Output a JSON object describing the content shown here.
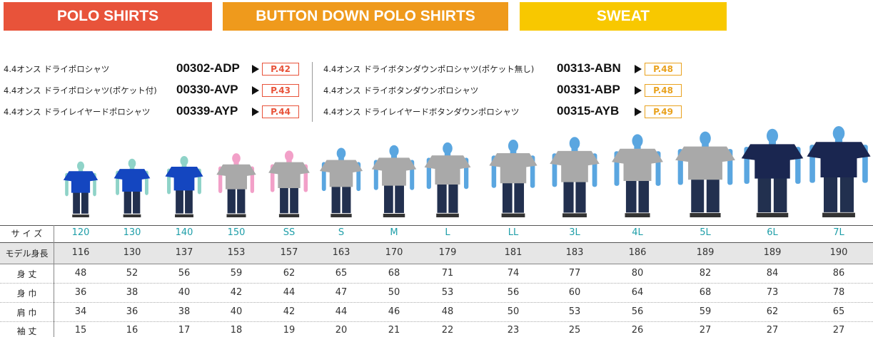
{
  "tabs": [
    "POLO SHIRTS",
    "BUTTON DOWN POLO SHIRTS",
    "SWEAT"
  ],
  "products": {
    "left": [
      {
        "name": "4.4オンス ドライポロシャツ",
        "code": "00302-ADP",
        "page": "P.42"
      },
      {
        "name": "4.4オンス ドライポロシャツ(ポケット付)",
        "code": "00330-AVP",
        "page": "P.43"
      },
      {
        "name": "4.4オンス ドライレイヤードポロシャツ",
        "code": "00339-AYP",
        "page": "P.44"
      }
    ],
    "right": [
      {
        "name": "4.4オンス ドライボタンダウンポロシャツ(ポケット無し)",
        "code": "00313-ABN",
        "page": "P.48"
      },
      {
        "name": "4.4オンス ドライボタンダウンポロシャツ",
        "code": "00331-ABP",
        "page": "P.48"
      },
      {
        "name": "4.4オンス ドライレイヤードボタンダウンポロシャツ",
        "code": "00315-AYB",
        "page": "P.49"
      }
    ]
  },
  "table": {
    "header": {
      "label": "サ イ ズ",
      "sizes": [
        "120",
        "130",
        "140",
        "150",
        "SS",
        "S",
        "M",
        "L",
        "LL",
        "3L",
        "4L",
        "5L",
        "6L",
        "7L"
      ]
    },
    "rows": [
      {
        "label": "モデル身長",
        "values": [
          116,
          130,
          137,
          153,
          157,
          163,
          170,
          179,
          181,
          183,
          186,
          189,
          189,
          190
        ]
      },
      {
        "label": "身 丈",
        "values": [
          48,
          52,
          56,
          59,
          62,
          65,
          68,
          71,
          74,
          77,
          80,
          82,
          84,
          86
        ]
      },
      {
        "label": "身 巾",
        "values": [
          36,
          38,
          40,
          42,
          44,
          47,
          50,
          53,
          56,
          60,
          64,
          68,
          73,
          78
        ]
      },
      {
        "label": "肩 巾",
        "values": [
          34,
          36,
          38,
          40,
          42,
          44,
          46,
          48,
          50,
          53,
          56,
          59,
          62,
          65
        ]
      },
      {
        "label": "袖 丈",
        "values": [
          15,
          16,
          17,
          18,
          19,
          20,
          21,
          22,
          23,
          25,
          26,
          27,
          27,
          27
        ]
      }
    ]
  }
}
